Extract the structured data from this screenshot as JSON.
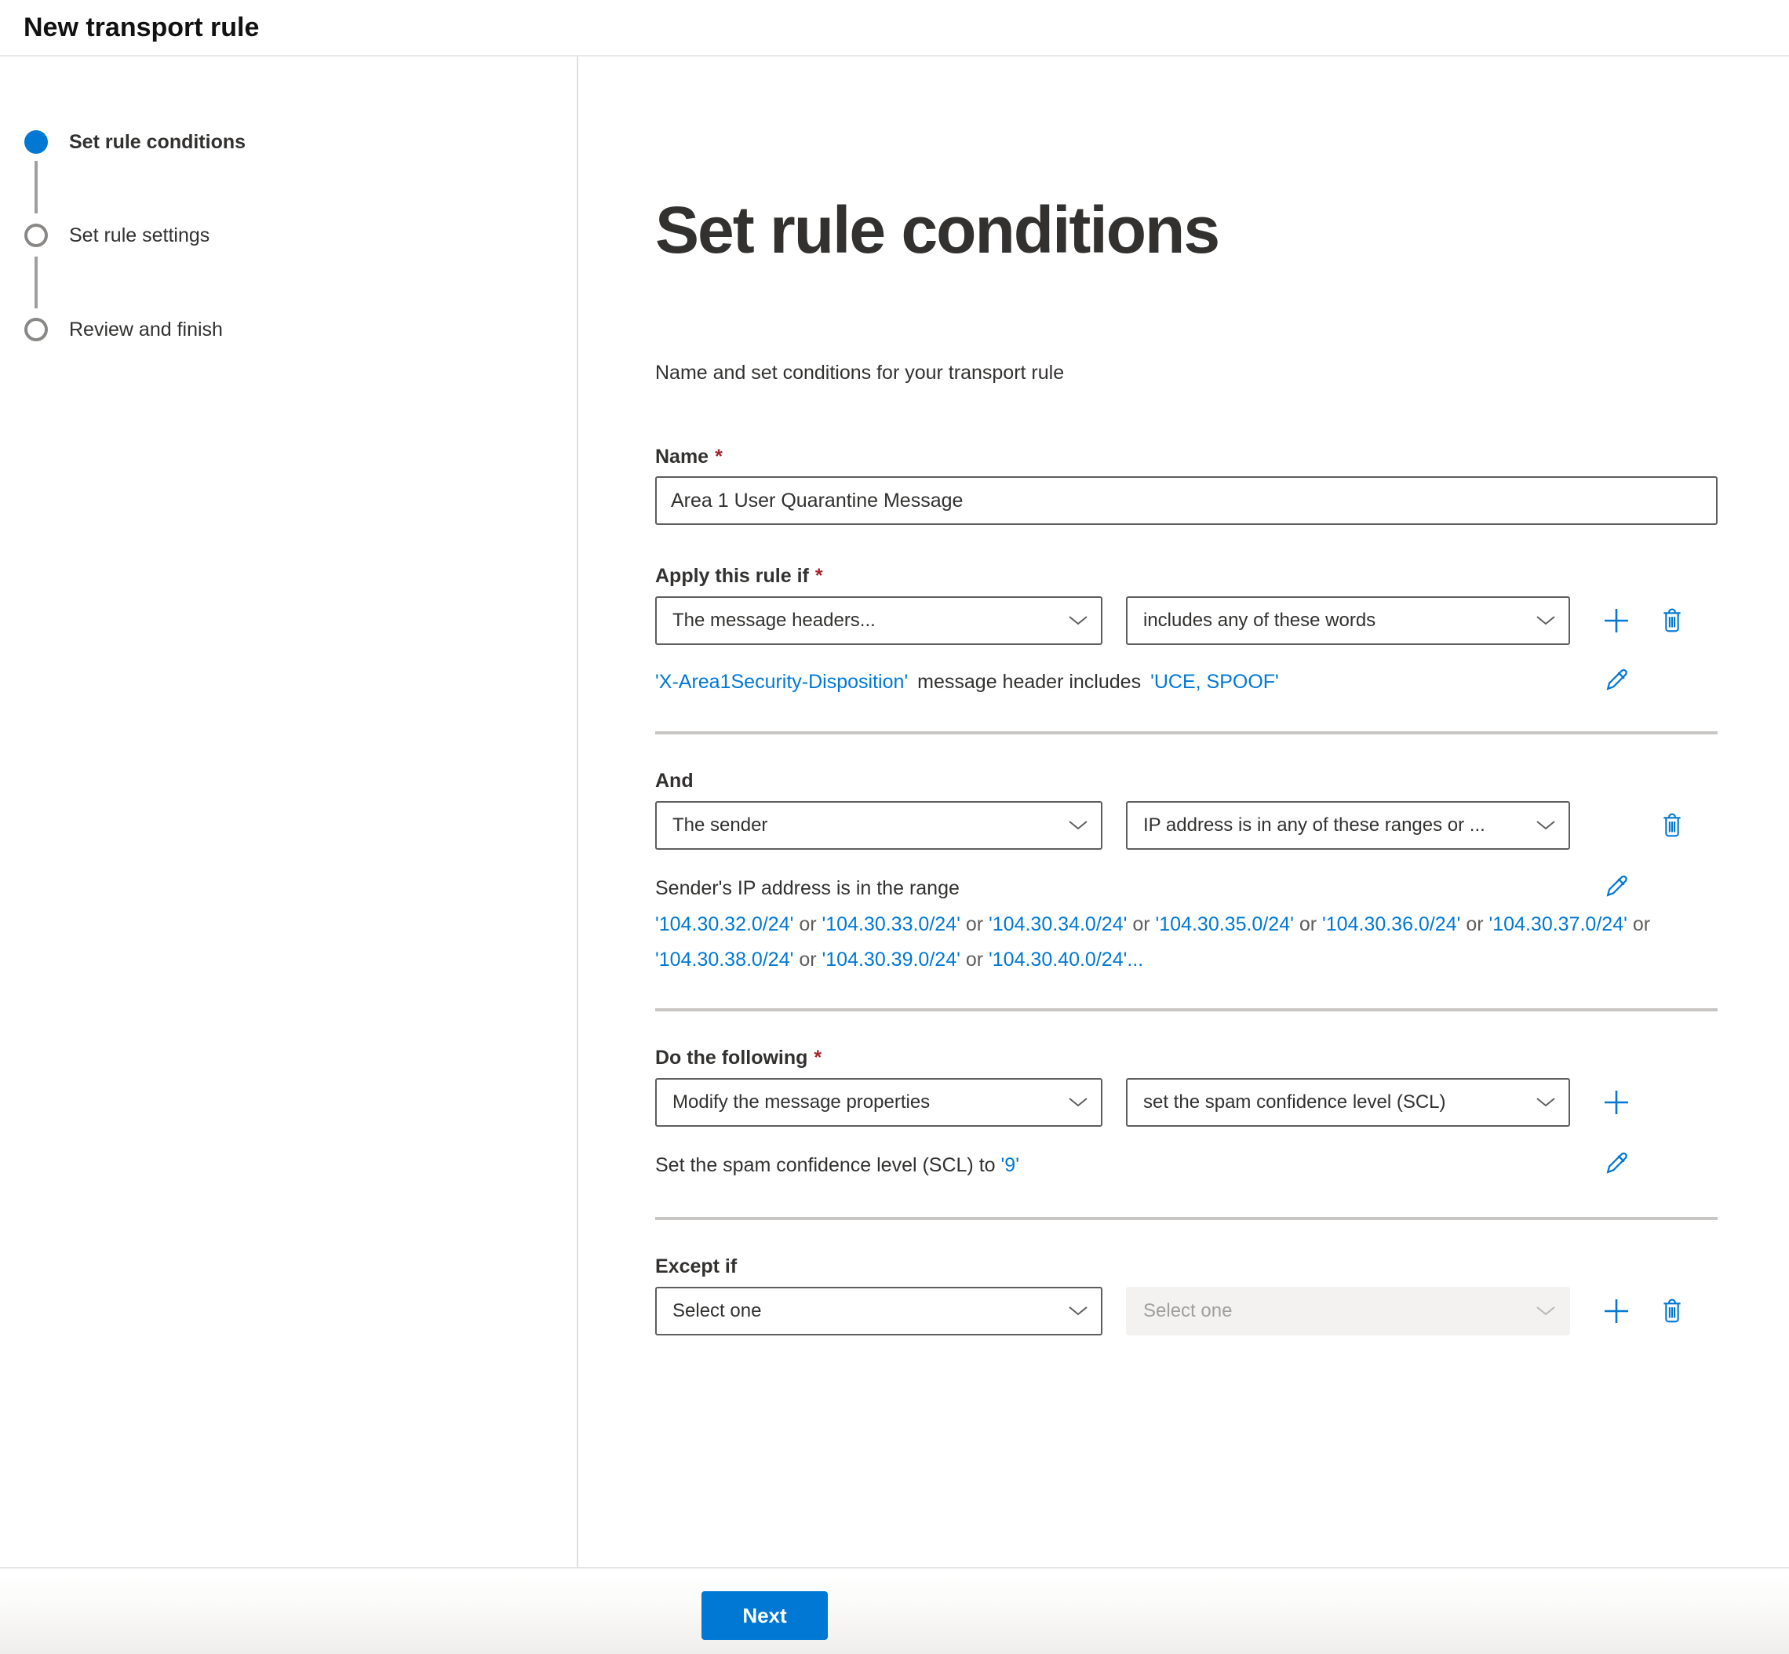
{
  "header": {
    "title": "New transport rule"
  },
  "stepper": {
    "step1": "Set rule conditions",
    "step2": "Set rule settings",
    "step3": "Review and finish"
  },
  "main": {
    "heading": "Set rule conditions",
    "subtitle": "Name and set conditions for your transport rule",
    "name": {
      "label": "Name",
      "required_mark": "*",
      "value": "Area 1 User Quarantine Message"
    },
    "apply": {
      "label": "Apply this rule if",
      "required_mark": "*",
      "condition_dropdown": "The message headers...",
      "operator_dropdown": "includes any of these words",
      "summary": {
        "header_link": "'X-Area1Security-Disposition'",
        "middle": "message header includes",
        "words_link": "'UCE, SPOOF'"
      }
    },
    "and": {
      "label": "And",
      "condition_dropdown": "The sender",
      "operator_dropdown": "IP address is in any of these ranges or ...",
      "summary_intro": "Sender's IP address is in the range",
      "ip_separator": "or",
      "ip_ranges": [
        "'104.30.32.0/24'",
        "'104.30.33.0/24'",
        "'104.30.34.0/24'",
        "'104.30.35.0/24'",
        "'104.30.36.0/24'",
        "'104.30.37.0/24'",
        "'104.30.38.0/24'",
        "'104.30.39.0/24'",
        "'104.30.40.0/24'..."
      ]
    },
    "do": {
      "label": "Do the following",
      "required_mark": "*",
      "action_dropdown": "Modify the message properties",
      "detail_dropdown": "set the spam confidence level (SCL)",
      "summary_prefix": "Set the spam confidence level (SCL) to",
      "summary_value": "'9'"
    },
    "except": {
      "label": "Except if",
      "condition_dropdown": "Select one",
      "operator_dropdown": "Select one"
    }
  },
  "footer": {
    "next_label": "Next"
  },
  "icons": {
    "add": "plus-icon",
    "delete": "trash-icon",
    "edit": "pencil-icon",
    "dropdown": "chevron-down-icon"
  },
  "colors": {
    "accent": "#0078d4",
    "link": "#0078d4",
    "required": "#a4262c",
    "divider": "#c8c6c4",
    "step_idle_ring": "#8a8886",
    "disabled_bg": "#f3f2f1",
    "disabled_text": "#a19f9d"
  }
}
